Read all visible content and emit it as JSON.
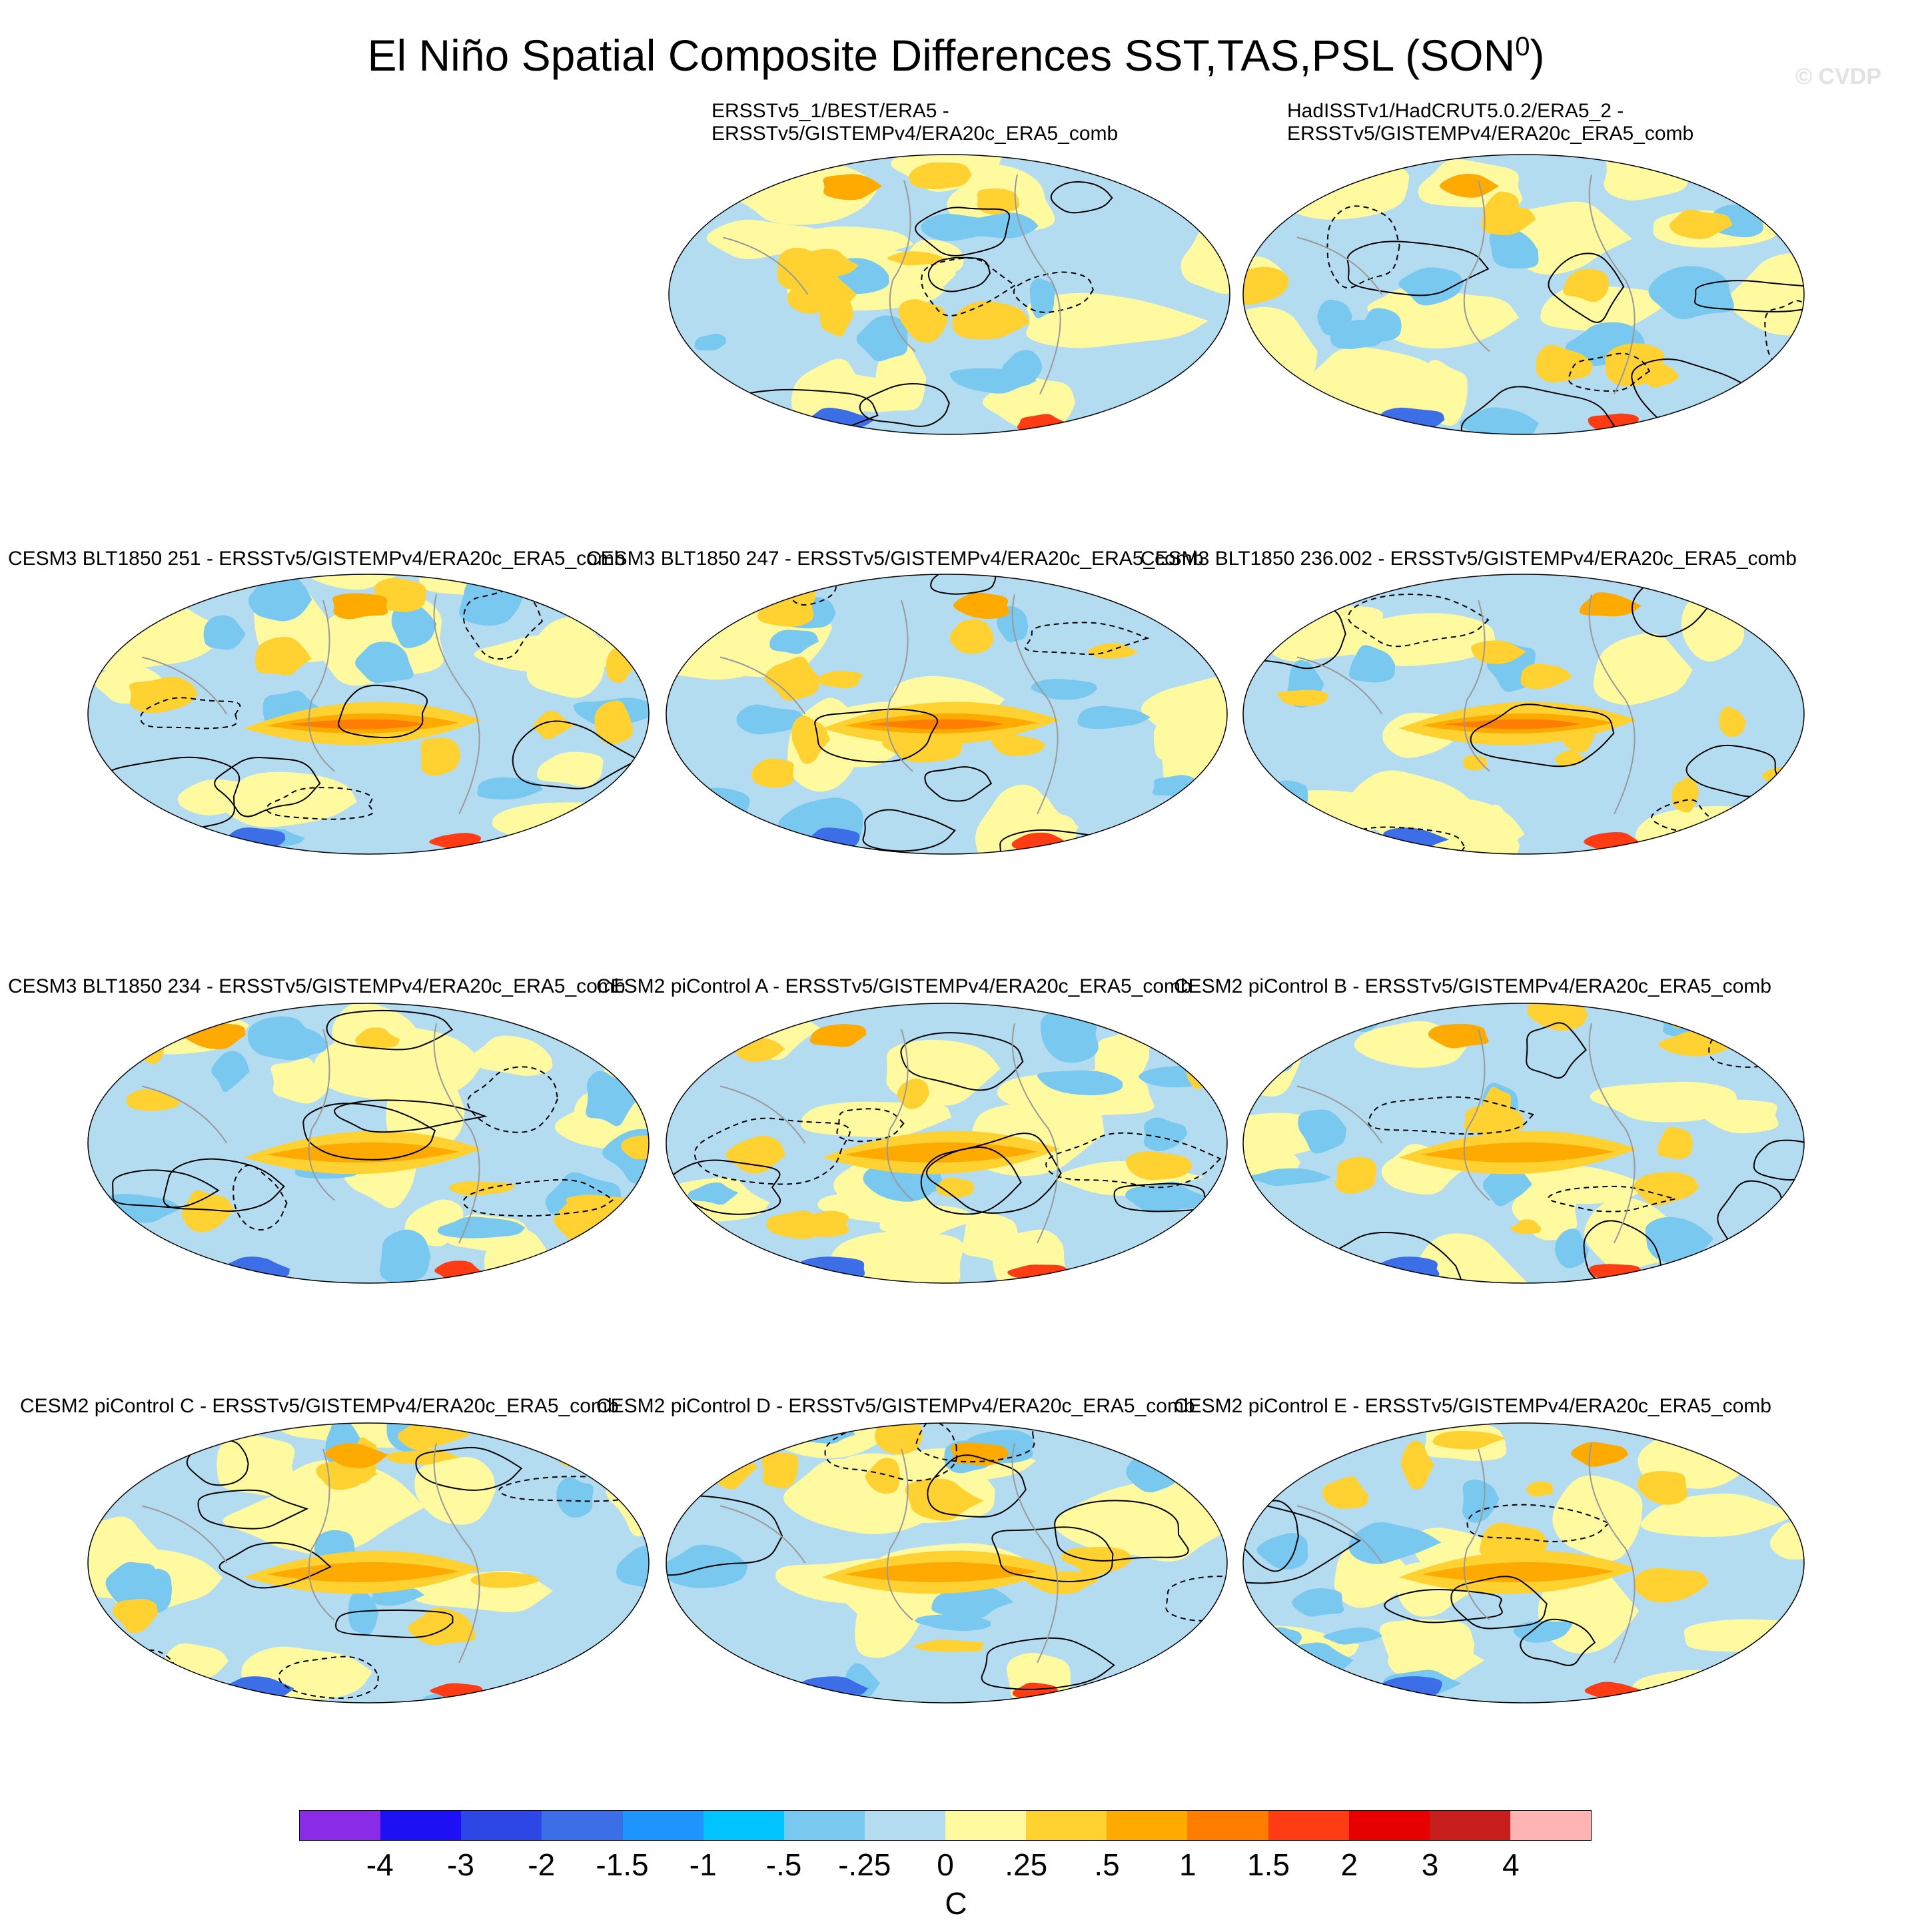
{
  "title": {
    "main": "El Niño Spatial Composite Differences SST,TAS,PSL (SON",
    "superscript": "0",
    "close": ")"
  },
  "watermark": "© CVDP",
  "panels": [
    {
      "label_lines": [
        "ERSSTv5_1/BEST/ERA5 -",
        "ERSSTv5/GISTEMPv4/ERA20c_ERA5_comb"
      ]
    },
    {
      "label_lines": [
        "HadISSTv1/HadCRUT5.0.2/ERA5_2 -",
        "ERSSTv5/GISTEMPv4/ERA20c_ERA5_comb"
      ]
    },
    {
      "label_lines": [
        "CESM3 BLT1850 251 - ERSSTv5/GISTEMPv4/ERA20c_ERA5_comb"
      ]
    },
    {
      "label_lines": [
        "CESM3 BLT1850 247 - ERSSTv5/GISTEMPv4/ERA20c_ERA5_comb"
      ]
    },
    {
      "label_lines": [
        "CESM3 BLT1850 236.002 - ERSSTv5/GISTEMPv4/ERA20c_ERA5_comb"
      ]
    },
    {
      "label_lines": [
        "CESM3 BLT1850 234 - ERSSTv5/GISTEMPv4/ERA20c_ERA5_comb"
      ]
    },
    {
      "label_lines": [
        "CESM2 piControl A - ERSSTv5/GISTEMPv4/ERA20c_ERA5_comb"
      ]
    },
    {
      "label_lines": [
        "CESM2 piControl B - ERSSTv5/GISTEMPv4/ERA20c_ERA5_comb"
      ]
    },
    {
      "label_lines": [
        "CESM2 piControl C - ERSSTv5/GISTEMPv4/ERA20c_ERA5_comb"
      ]
    },
    {
      "label_lines": [
        "CESM2 piControl D - ERSSTv5/GISTEMPv4/ERA20c_ERA5_comb"
      ]
    },
    {
      "label_lines": [
        "CESM2 piControl E - ERSSTv5/GISTEMPv4/ERA20c_ERA5_comb"
      ]
    }
  ],
  "colorbar": {
    "colors": [
      "#8a2be8",
      "#1e10f5",
      "#2d46e6",
      "#3c6ee8",
      "#1e94ff",
      "#00c3ff",
      "#78c8f0",
      "#b4dcf0",
      "#fffaa0",
      "#ffd232",
      "#ffaa00",
      "#ff7d00",
      "#ff3c14",
      "#e60000",
      "#c81e1e",
      "#ffb4b4"
    ],
    "labels": [
      "-4",
      "-3",
      "-2",
      "-1.5",
      "-1",
      "-.5",
      "-.25",
      "0",
      ".25",
      ".5",
      "1",
      "1.5",
      "2",
      "3",
      "4"
    ],
    "unit": "C"
  }
}
